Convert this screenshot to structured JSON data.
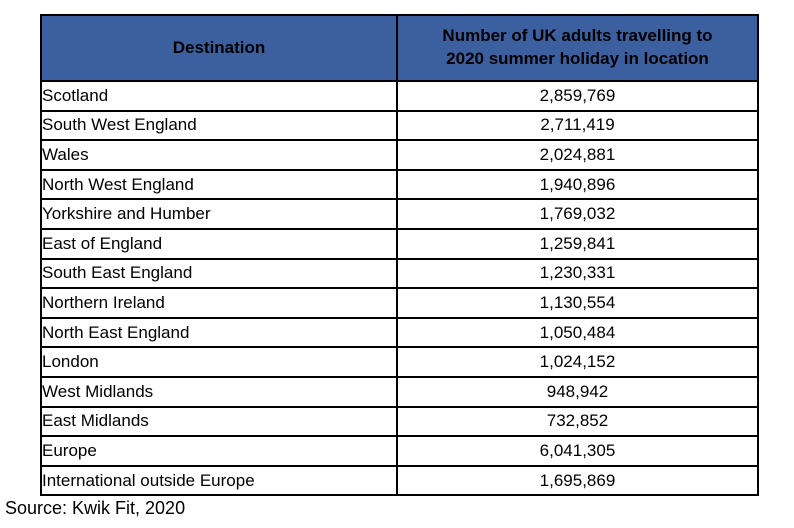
{
  "colors": {
    "header_bg": "#3B5F9F",
    "header_text": "#FFFFFF",
    "border": "#000000",
    "body_text": "#000000",
    "page_bg": "#FFFFFF"
  },
  "table": {
    "header": {
      "destination": "Destination",
      "value": "Number of UK adults travelling to 2020 summer holiday in location"
    },
    "rows": [
      {
        "destination": "Scotland",
        "value": "2,859,769"
      },
      {
        "destination": "South West England",
        "value": "2,711,419"
      },
      {
        "destination": "Wales",
        "value": "2,024,881"
      },
      {
        "destination": "North West England",
        "value": "1,940,896"
      },
      {
        "destination": "Yorkshire and Humber",
        "value": "1,769,032"
      },
      {
        "destination": "East of England",
        "value": "1,259,841"
      },
      {
        "destination": "South East England",
        "value": "1,230,331"
      },
      {
        "destination": "Northern Ireland",
        "value": "1,130,554"
      },
      {
        "destination": "North East England",
        "value": "1,050,484"
      },
      {
        "destination": "London",
        "value": "1,024,152"
      },
      {
        "destination": "West Midlands",
        "value": "948,942"
      },
      {
        "destination": "East Midlands",
        "value": "732,852"
      },
      {
        "destination": "Europe",
        "value": "6,041,305"
      },
      {
        "destination": "International outside Europe",
        "value": "1,695,869"
      }
    ]
  },
  "source": "Source: Kwik Fit, 2020",
  "chart_data": {
    "type": "table",
    "columns": [
      "Destination",
      "Number of UK adults travelling to 2020 summer holiday in location"
    ],
    "rows": [
      [
        "Scotland",
        2859769
      ],
      [
        "South West England",
        2711419
      ],
      [
        "Wales",
        2024881
      ],
      [
        "North West England",
        1940896
      ],
      [
        "Yorkshire and Humber",
        1769032
      ],
      [
        "East of England",
        1259841
      ],
      [
        "South East England",
        1230331
      ],
      [
        "Northern Ireland",
        1130554
      ],
      [
        "North East England",
        1050484
      ],
      [
        "London",
        1024152
      ],
      [
        "West Midlands",
        948942
      ],
      [
        "East Midlands",
        732852
      ],
      [
        "Europe",
        6041305
      ],
      [
        "International outside Europe",
        1695869
      ]
    ],
    "annotations": [
      "Source: Kwik Fit, 2020"
    ],
    "title": ""
  }
}
